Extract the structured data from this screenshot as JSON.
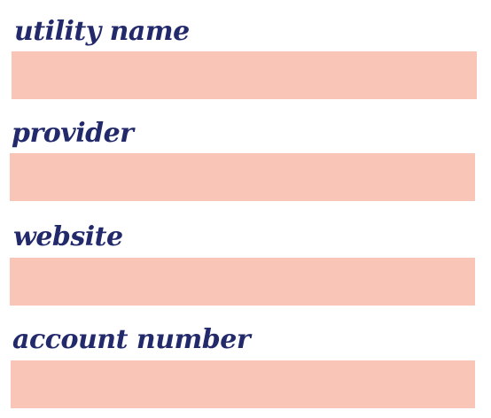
{
  "form": {
    "accent_color": "#232a6b",
    "field_color": "#f9c5b6",
    "fields": [
      {
        "label": "utility name",
        "value": ""
      },
      {
        "label": "provider",
        "value": ""
      },
      {
        "label": "website",
        "value": ""
      },
      {
        "label": "account number",
        "value": ""
      }
    ]
  }
}
